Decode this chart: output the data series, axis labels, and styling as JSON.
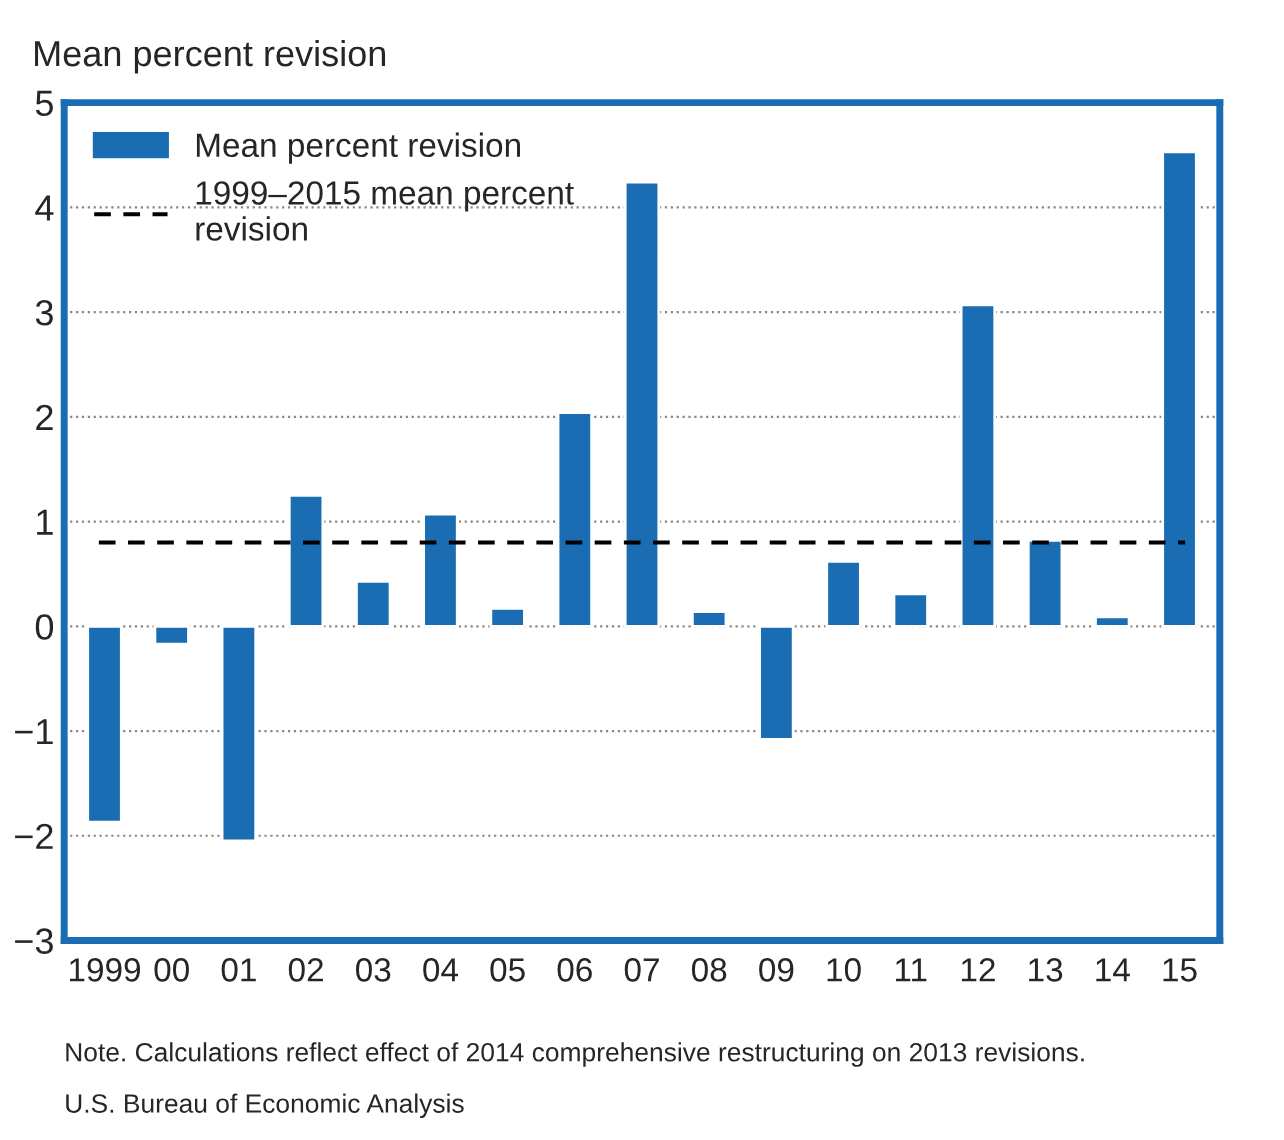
{
  "chart_data": {
    "type": "bar",
    "ylabel": "Mean percent revision",
    "categories": [
      "1999",
      "00",
      "01",
      "02",
      "03",
      "04",
      "05",
      "06",
      "07",
      "08",
      "09",
      "10",
      "11",
      "12",
      "13",
      "14",
      "15"
    ],
    "series": [
      {
        "name": "Mean percent revision",
        "color": "#1a6db3",
        "values": [
          -1.87,
          -0.17,
          -2.05,
          1.25,
          0.43,
          1.07,
          0.17,
          2.04,
          4.24,
          0.14,
          -1.08,
          0.62,
          0.31,
          3.07,
          0.82,
          0.09,
          4.53
        ]
      }
    ],
    "ref_lines": [
      {
        "axis": "y",
        "value": 0.8,
        "label": "1999–2015 mean percent\nrevision",
        "color": "#000000",
        "line_style": "dashed"
      }
    ],
    "ylim": [
      -3,
      5
    ],
    "yticks": [
      {
        "value": -3,
        "label": "−3"
      },
      {
        "value": -2,
        "label": "−2"
      },
      {
        "value": -1,
        "label": "−1"
      },
      0,
      1,
      2,
      3,
      4,
      5
    ],
    "grid": "y",
    "legend": "top left",
    "annotations": [
      "Note. Calculations reflect effect of 2014 comprehensive restructuring on 2013 revisions.",
      "U.S. Bureau of Economic Analysis"
    ]
  }
}
